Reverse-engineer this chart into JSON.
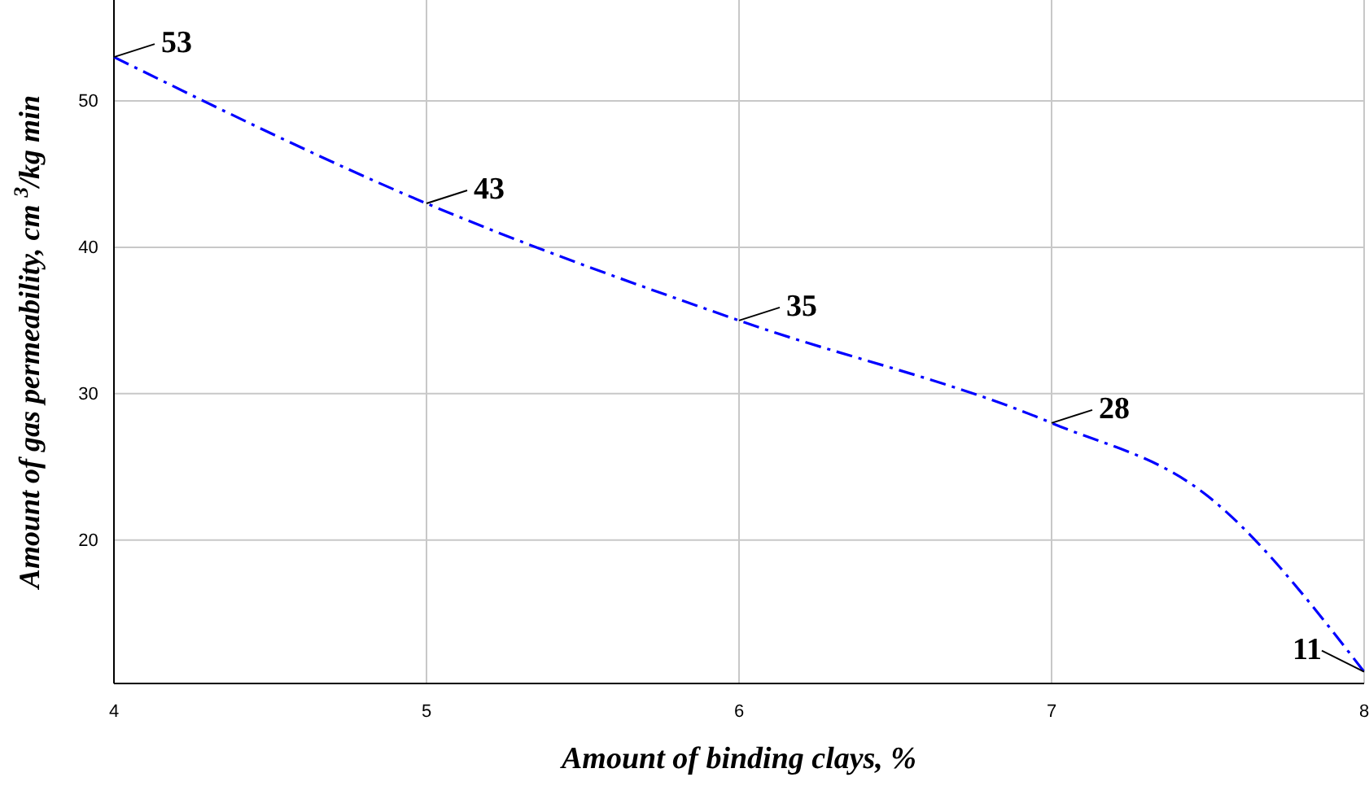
{
  "chart_data": {
    "type": "line",
    "xlabel": "Amount of binding clays, %",
    "ylabel": "Amount of gas permeability,  cm $^{3}$/kg min",
    "x": [
      4,
      5,
      6,
      7,
      7.5,
      8
    ],
    "series": [
      {
        "color": "#0000ff",
        "values": [
          53,
          43,
          35,
          28,
          23,
          11
        ]
      }
    ],
    "value_labels": [
      "53",
      "43",
      "35",
      "28",
      null,
      "11"
    ],
    "xlim": [
      4,
      8
    ],
    "xticks": [
      4,
      5,
      6,
      7,
      8
    ],
    "ylim": [
      10.2,
      56.9
    ],
    "yticks": [
      20,
      30,
      40,
      50
    ],
    "grid": true,
    "line_style": "dashdot",
    "marker": "none"
  }
}
